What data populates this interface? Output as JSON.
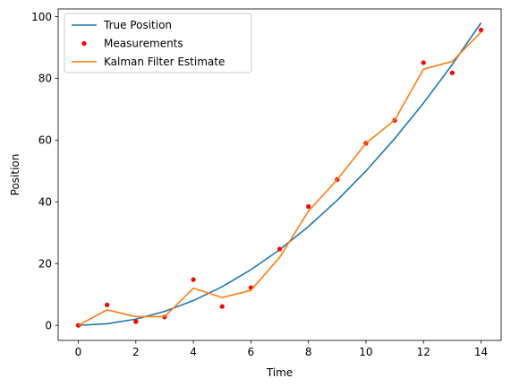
{
  "chart_data": {
    "type": "line",
    "title": "",
    "xlabel": "Time",
    "ylabel": "Position",
    "xlim": [
      -0.7,
      14.7
    ],
    "ylim": [
      -4.9,
      102.5
    ],
    "xticks": [
      0,
      2,
      4,
      6,
      8,
      10,
      12,
      14
    ],
    "yticks": [
      0,
      20,
      40,
      60,
      80,
      100
    ],
    "grid": false,
    "legend_position": "top-left",
    "x": [
      0,
      1,
      2,
      3,
      4,
      5,
      6,
      7,
      8,
      9,
      10,
      11,
      12,
      13,
      14
    ],
    "series": [
      {
        "name": "True Position",
        "style": "line",
        "color": "#1f77b4",
        "values": [
          0,
          0.5,
          2,
          4.5,
          8,
          12.5,
          18,
          24.5,
          32,
          40.5,
          50,
          60.5,
          72,
          84.5,
          98
        ]
      },
      {
        "name": "Measurements",
        "style": "markers",
        "color": "#ff0000",
        "values": [
          0,
          6.6,
          1.2,
          2.7,
          14.8,
          6.1,
          12.2,
          24.7,
          38.5,
          47.2,
          59.0,
          66.4,
          85.1,
          81.8,
          95.7
        ]
      },
      {
        "name": "Kalman Filter Estimate",
        "style": "line",
        "color": "#ff7f0e",
        "values": [
          0,
          5.0,
          2.8,
          2.8,
          12.0,
          9.0,
          11.3,
          22.0,
          37.0,
          47.2,
          59.0,
          66.5,
          83.0,
          85.5,
          95.0
        ]
      }
    ]
  }
}
